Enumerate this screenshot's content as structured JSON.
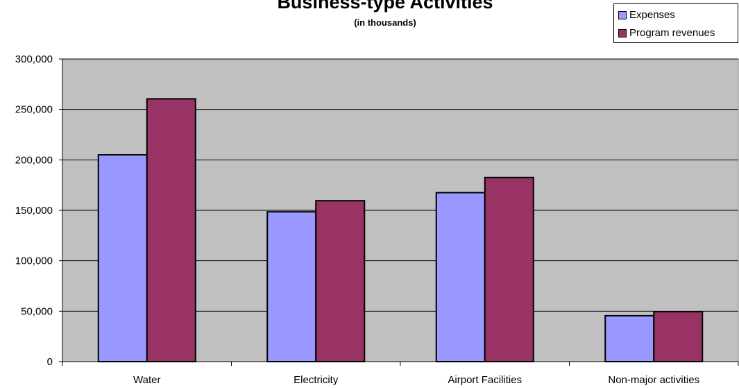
{
  "chart_data": {
    "type": "bar",
    "title": "Business-type Activities",
    "subtitle": "(in thousands)",
    "xlabel": "",
    "ylabel": "",
    "categories": [
      "Water",
      "Electricity",
      "Airport Facilities",
      "Non-major activities"
    ],
    "series": [
      {
        "name": "Expenses",
        "color": "#9999ff",
        "values": [
          205000,
          148500,
          167500,
          45500
        ]
      },
      {
        "name": "Program revenues",
        "color": "#993366",
        "values": [
          260500,
          159500,
          182500,
          49500
        ]
      }
    ],
    "ylim": [
      0,
      300000
    ],
    "yticks": [
      0,
      50000,
      100000,
      150000,
      200000,
      250000,
      300000
    ],
    "ytick_labels": [
      "0",
      "50,000",
      "100,000",
      "150,000",
      "200,000",
      "250,000",
      "300,000"
    ],
    "plot_background": "#c0c0c0",
    "grid": true,
    "legend_position": "top-right"
  }
}
